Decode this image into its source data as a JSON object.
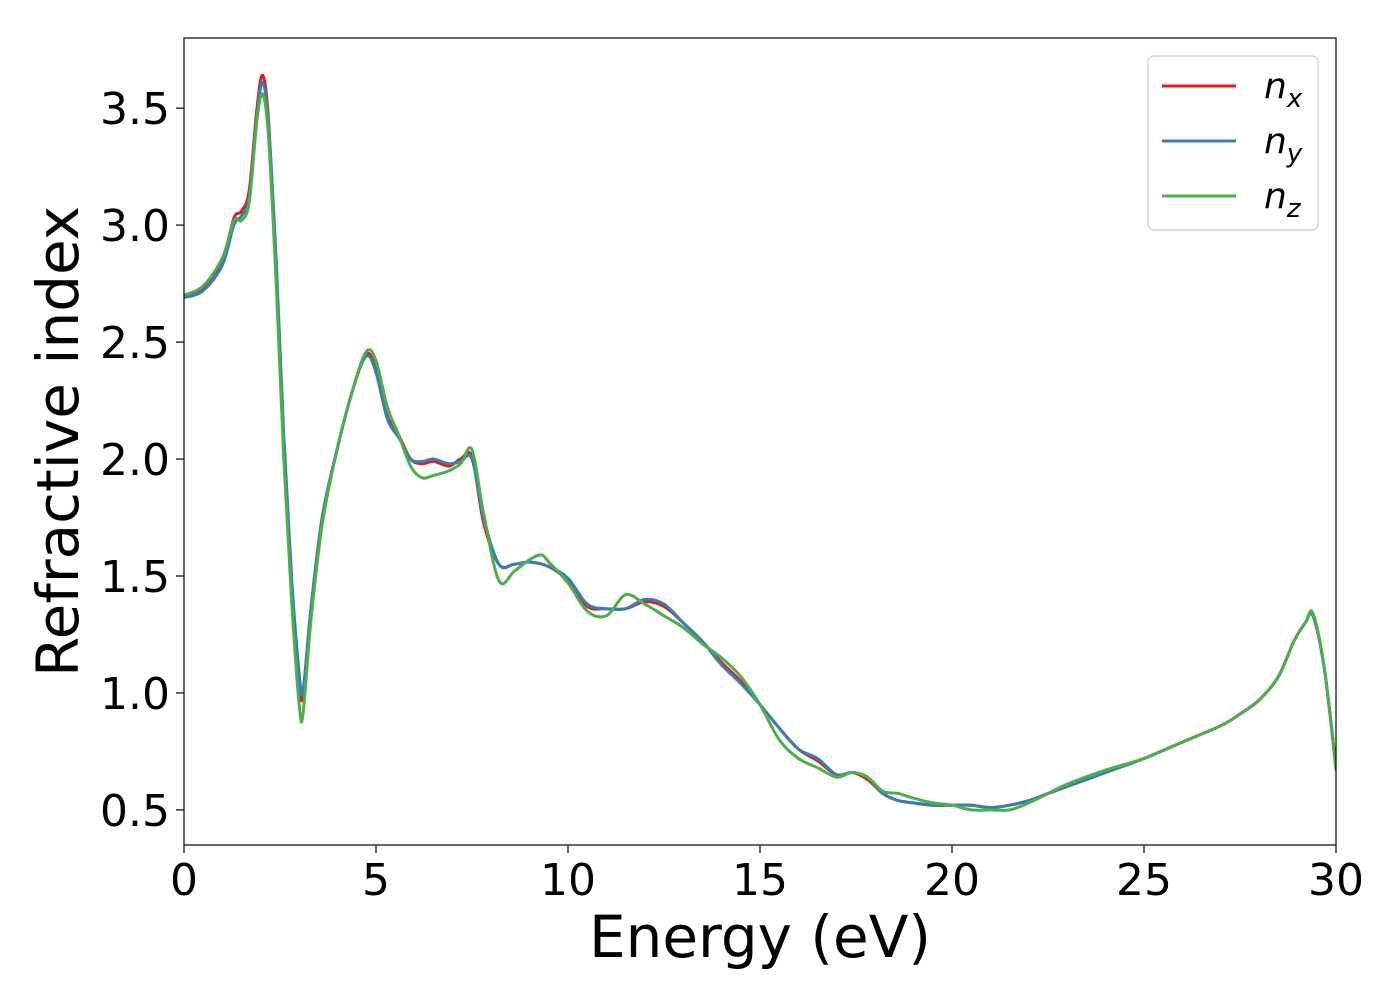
{
  "chart_data": {
    "type": "line",
    "xlabel": "Energy (eV)",
    "ylabel": "Refractive index",
    "xlim": [
      0,
      30
    ],
    "ylim": [
      0.35,
      3.8
    ],
    "xticks": [
      0,
      5,
      10,
      15,
      20,
      25,
      30
    ],
    "xtick_labels": [
      "0",
      "5",
      "10",
      "15",
      "20",
      "25",
      "30"
    ],
    "yticks": [
      0.5,
      1.0,
      1.5,
      2.0,
      2.5,
      3.0,
      3.5
    ],
    "ytick_labels": [
      "0.5",
      "1.0",
      "1.5",
      "2.0",
      "2.5",
      "3.0",
      "3.5"
    ],
    "grid": false,
    "legend_position": "top-right",
    "series": [
      {
        "name": "n",
        "subscript": "x",
        "color": "#e41a1c",
        "x": [
          0,
          0.5,
          1.0,
          1.3,
          1.5,
          1.7,
          1.9,
          2.05,
          2.2,
          2.4,
          2.6,
          2.8,
          3.0,
          3.1,
          3.3,
          3.6,
          4.0,
          4.4,
          4.75,
          5.0,
          5.3,
          5.6,
          5.9,
          6.2,
          6.5,
          6.9,
          7.2,
          7.5,
          7.8,
          8.2,
          8.6,
          9.0,
          9.5,
          10.0,
          10.5,
          11.0,
          11.5,
          12.0,
          12.5,
          13.0,
          13.5,
          14.0,
          14.5,
          15.0,
          15.5,
          16.0,
          16.5,
          17.0,
          17.4,
          17.8,
          18.2,
          18.6,
          19.0,
          19.5,
          20.0,
          20.5,
          21.0,
          21.5,
          22.0,
          22.5,
          23.0,
          24.0,
          25.0,
          26.0,
          27.0,
          27.5,
          28.0,
          28.5,
          28.9,
          29.2,
          29.4,
          29.7,
          30.0
        ],
        "y": [
          2.7,
          2.73,
          2.85,
          3.03,
          3.06,
          3.15,
          3.5,
          3.64,
          3.45,
          2.8,
          2.05,
          1.45,
          1.05,
          0.99,
          1.35,
          1.75,
          2.05,
          2.3,
          2.45,
          2.38,
          2.18,
          2.1,
          2.0,
          1.98,
          1.99,
          1.97,
          2.0,
          2.01,
          1.73,
          1.55,
          1.55,
          1.56,
          1.54,
          1.48,
          1.37,
          1.36,
          1.36,
          1.39,
          1.37,
          1.3,
          1.22,
          1.13,
          1.05,
          0.95,
          0.85,
          0.76,
          0.71,
          0.65,
          0.66,
          0.63,
          0.57,
          0.54,
          0.53,
          0.52,
          0.52,
          0.52,
          0.51,
          0.52,
          0.54,
          0.57,
          0.6,
          0.66,
          0.72,
          0.79,
          0.86,
          0.91,
          0.97,
          1.07,
          1.22,
          1.3,
          1.33,
          1.1,
          0.68
        ]
      },
      {
        "name": "n",
        "subscript": "y",
        "color": "#377eb8",
        "x": [
          0,
          0.5,
          1.0,
          1.3,
          1.5,
          1.7,
          1.9,
          2.05,
          2.2,
          2.4,
          2.6,
          2.8,
          3.0,
          3.1,
          3.3,
          3.6,
          4.0,
          4.4,
          4.75,
          5.0,
          5.3,
          5.6,
          5.9,
          6.2,
          6.5,
          6.9,
          7.2,
          7.5,
          7.8,
          8.2,
          8.6,
          9.0,
          9.5,
          10.0,
          10.5,
          11.0,
          11.5,
          12.0,
          12.5,
          13.0,
          13.5,
          14.0,
          14.5,
          15.0,
          15.5,
          16.0,
          16.5,
          17.0,
          17.4,
          17.8,
          18.2,
          18.6,
          19.0,
          19.5,
          20.0,
          20.5,
          21.0,
          21.5,
          22.0,
          22.5,
          23.0,
          24.0,
          25.0,
          26.0,
          27.0,
          27.5,
          28.0,
          28.5,
          28.9,
          29.2,
          29.4,
          29.7,
          30.0
        ],
        "y": [
          2.69,
          2.72,
          2.83,
          3.0,
          3.04,
          3.12,
          3.47,
          3.61,
          3.43,
          2.85,
          2.1,
          1.5,
          1.08,
          1.01,
          1.35,
          1.75,
          2.05,
          2.3,
          2.44,
          2.37,
          2.17,
          2.09,
          2.0,
          1.99,
          2.0,
          1.98,
          1.99,
          2.0,
          1.75,
          1.55,
          1.55,
          1.56,
          1.54,
          1.49,
          1.38,
          1.36,
          1.36,
          1.4,
          1.38,
          1.3,
          1.22,
          1.12,
          1.04,
          0.95,
          0.85,
          0.76,
          0.72,
          0.65,
          0.66,
          0.64,
          0.57,
          0.54,
          0.53,
          0.52,
          0.52,
          0.52,
          0.51,
          0.52,
          0.54,
          0.57,
          0.6,
          0.66,
          0.72,
          0.79,
          0.86,
          0.91,
          0.97,
          1.07,
          1.22,
          1.3,
          1.33,
          1.1,
          0.68
        ]
      },
      {
        "name": "n",
        "subscript": "z",
        "color": "#4daf4a",
        "x": [
          0,
          0.5,
          1.0,
          1.3,
          1.5,
          1.7,
          1.9,
          2.05,
          2.2,
          2.4,
          2.6,
          2.8,
          3.0,
          3.1,
          3.3,
          3.6,
          4.0,
          4.4,
          4.75,
          5.0,
          5.3,
          5.6,
          5.9,
          6.2,
          6.5,
          6.9,
          7.2,
          7.5,
          7.8,
          8.2,
          8.6,
          9.0,
          9.3,
          9.5,
          10.0,
          10.5,
          11.0,
          11.5,
          12.0,
          12.5,
          13.0,
          13.5,
          14.0,
          14.5,
          15.0,
          15.5,
          16.0,
          16.5,
          17.0,
          17.4,
          17.8,
          18.2,
          18.6,
          19.0,
          19.5,
          20.0,
          20.5,
          21.0,
          21.5,
          22.0,
          22.5,
          23.0,
          24.0,
          25.0,
          26.0,
          27.0,
          27.5,
          28.0,
          28.5,
          28.9,
          29.2,
          29.4,
          29.7,
          30.0
        ],
        "y": [
          2.7,
          2.74,
          2.86,
          3.02,
          3.02,
          3.1,
          3.45,
          3.56,
          3.38,
          2.75,
          2.0,
          1.4,
          0.95,
          0.91,
          1.3,
          1.72,
          2.05,
          2.3,
          2.46,
          2.42,
          2.22,
          2.1,
          1.97,
          1.92,
          1.93,
          1.95,
          1.98,
          2.04,
          1.77,
          1.48,
          1.52,
          1.57,
          1.59,
          1.56,
          1.47,
          1.35,
          1.33,
          1.42,
          1.38,
          1.33,
          1.28,
          1.21,
          1.15,
          1.07,
          0.95,
          0.8,
          0.72,
          0.68,
          0.64,
          0.66,
          0.64,
          0.58,
          0.57,
          0.55,
          0.53,
          0.52,
          0.5,
          0.5,
          0.5,
          0.53,
          0.57,
          0.61,
          0.67,
          0.72,
          0.79,
          0.86,
          0.91,
          0.97,
          1.07,
          1.22,
          1.3,
          1.34,
          1.1,
          0.67
        ]
      }
    ]
  }
}
